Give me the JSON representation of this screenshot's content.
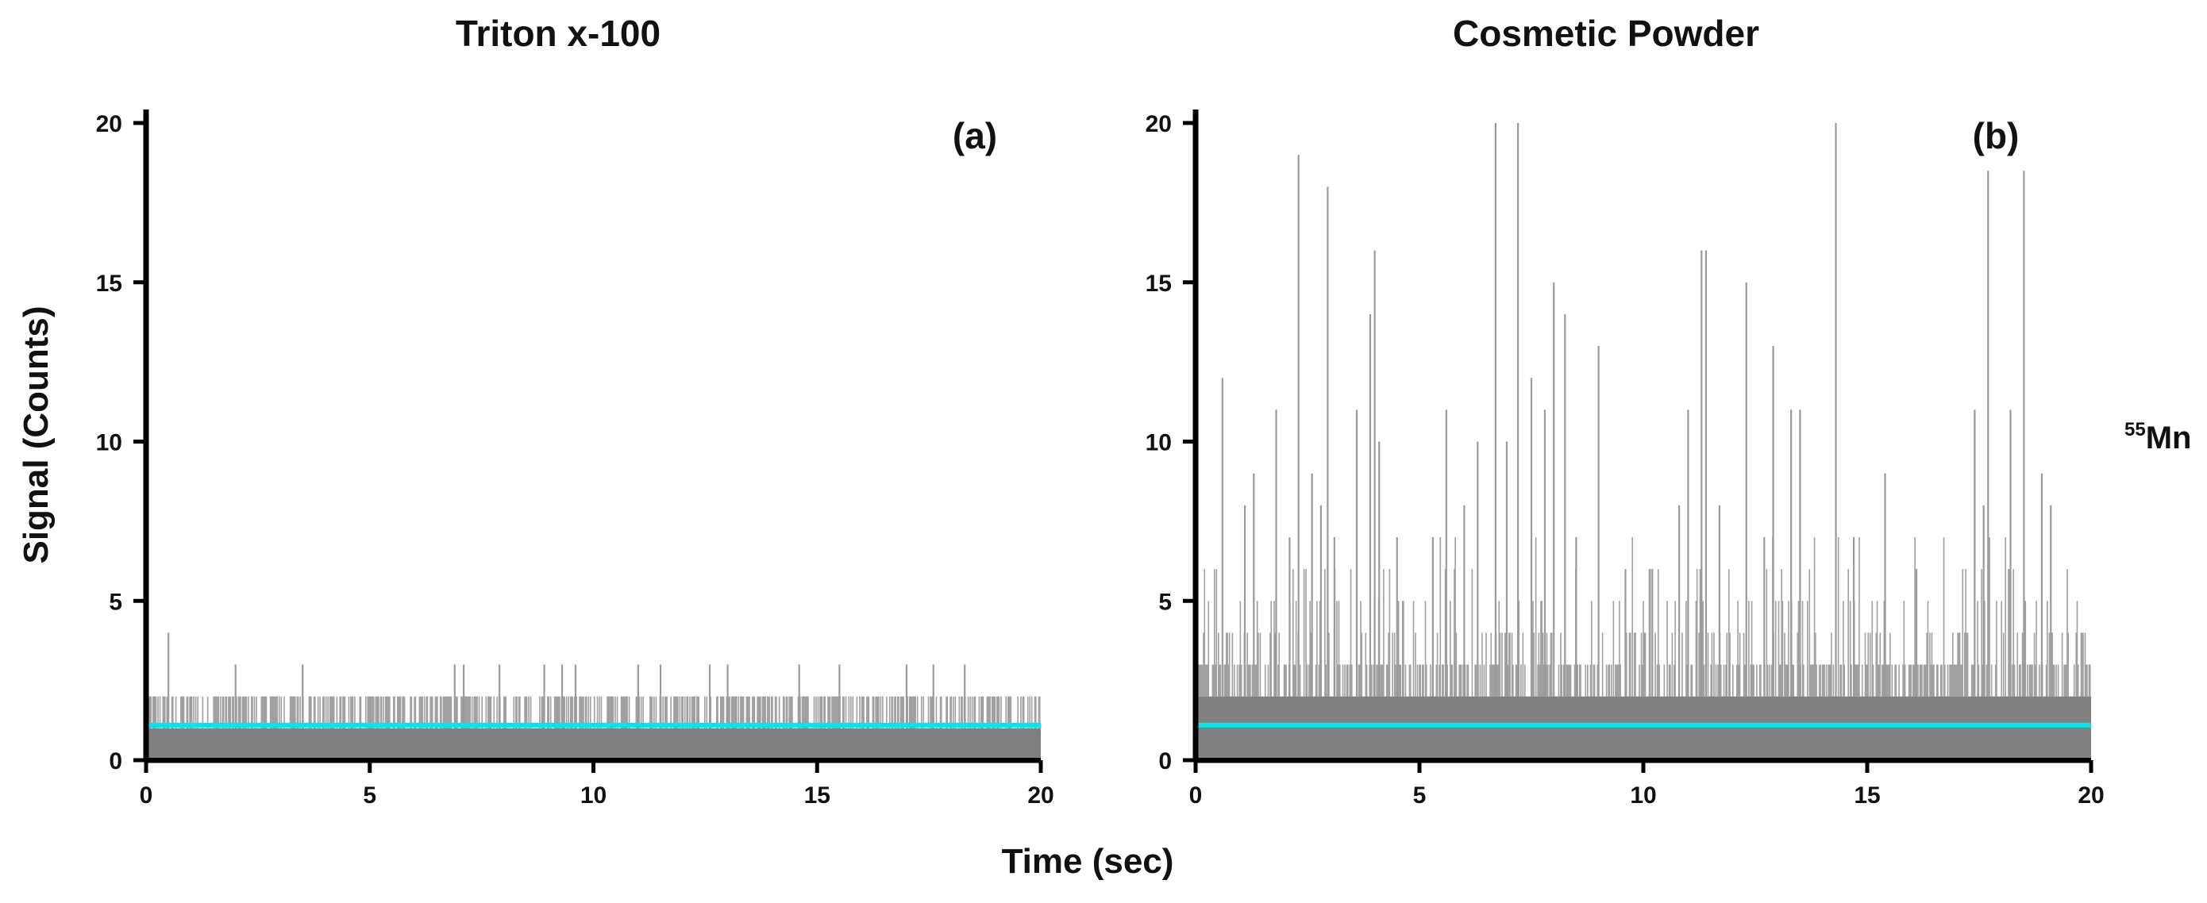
{
  "figure": {
    "xlabel": "Time (sec)",
    "ylabel": "Signal (Counts)",
    "isotope": {
      "mass": "55",
      "element": "Mn"
    }
  },
  "chart_data": [
    {
      "type": "bar",
      "panel": "(a)",
      "title": "Triton x-100",
      "xlabel": "Time (sec)",
      "ylabel": "Signal (Counts)",
      "xlim": [
        0,
        20
      ],
      "ylim": [
        0,
        20
      ],
      "xticks": [
        0,
        5,
        10,
        15,
        20
      ],
      "yticks": [
        0,
        5,
        10,
        15,
        20
      ],
      "bar_color": "#808080",
      "baseline": 1.1,
      "baseline_color": "#00e5ee",
      "series": [
        {
          "name": "dense signal band",
          "x_range": [
            0,
            20
          ],
          "level": 1
        },
        {
          "name": "2-count events",
          "note": "frequent throughout 0-20 s",
          "value": 2
        },
        {
          "name": "3-count spikes",
          "x": [
            2.0,
            3.5,
            6.9,
            7.1,
            7.9,
            8.9,
            9.3,
            9.6,
            11.0,
            11.5,
            12.6,
            13.0,
            14.6,
            15.5,
            17.0,
            17.6,
            18.3
          ],
          "value": 3
        },
        {
          "name": "4-count spikes",
          "x": [
            0.5
          ],
          "value": 4
        }
      ]
    },
    {
      "type": "bar",
      "panel": "(b)",
      "title": "Cosmetic Powder",
      "xlabel": "Time (sec)",
      "ylabel": "Signal (Counts)",
      "xlim": [
        0,
        20
      ],
      "ylim": [
        0,
        20
      ],
      "xticks": [
        0,
        5,
        10,
        15,
        20
      ],
      "yticks": [
        0,
        5,
        10,
        15,
        20
      ],
      "bar_color": "#808080",
      "baseline": 1.1,
      "baseline_color": "#00e5ee",
      "series": [
        {
          "name": "dense signal band",
          "x_range": [
            0,
            20
          ],
          "level": 2
        },
        {
          "name": "particle spikes",
          "x": [
            0.6,
            1.1,
            1.3,
            1.8,
            2.1,
            2.3,
            2.6,
            2.8,
            2.95,
            3.1,
            3.6,
            3.9,
            4.0,
            4.1,
            4.5,
            5.3,
            5.6,
            6.0,
            6.3,
            6.7,
            6.95,
            7.2,
            7.5,
            7.8,
            8.0,
            8.25,
            8.5,
            9.0,
            9.6,
            10.2,
            10.8,
            11.0,
            11.3,
            11.4,
            11.7,
            12.3,
            12.7,
            12.9,
            13.3,
            13.5,
            14.3,
            14.7,
            15.4,
            16.1,
            17.4,
            17.6,
            17.7,
            18.2,
            18.5,
            18.9,
            19.1
          ],
          "values": [
            12,
            8,
            9,
            11,
            7,
            19,
            9,
            8,
            18,
            7,
            11,
            14,
            16,
            10,
            7,
            7,
            11,
            8,
            10,
            20,
            10,
            20,
            12,
            11,
            15,
            14,
            7,
            13,
            6,
            6,
            8,
            11,
            16,
            16,
            8,
            15,
            7,
            13,
            11,
            11,
            20,
            7,
            9,
            6,
            11,
            8,
            18.5,
            11,
            18.5,
            9,
            8
          ]
        },
        {
          "name": "minor spikes",
          "note": "3-7 count events throughout 0-20 s",
          "value_range": [
            3,
            7
          ]
        }
      ]
    }
  ]
}
